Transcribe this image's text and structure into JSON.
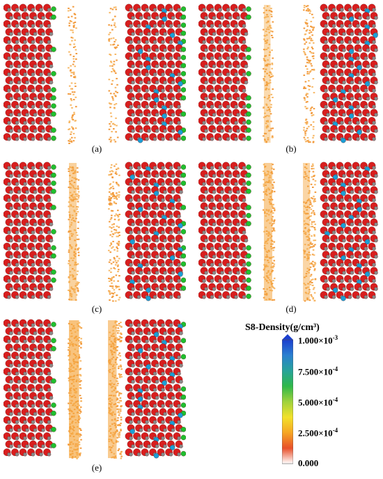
{
  "panels": [
    {
      "label": "(a)",
      "left_wall_atoms": "red-green-gray",
      "right_wall_atoms": "red-blue-green-gray",
      "s8_fill": 0.15
    },
    {
      "label": "(b)",
      "left_wall_atoms": "red-green-gray",
      "right_wall_atoms": "red-blue-gray",
      "s8_fill": 0.35
    },
    {
      "label": "(c)",
      "left_wall_atoms": "red-green-gray",
      "right_wall_atoms": "red-blue-green-gray",
      "s8_fill": 0.5
    },
    {
      "label": "(d)",
      "left_wall_atoms": "red-green-gray",
      "right_wall_atoms": "red-blue-gray",
      "s8_fill": 0.6
    },
    {
      "label": "(e)",
      "left_wall_atoms": "red-green-gray",
      "right_wall_atoms": "red-blue-green-gray",
      "s8_fill": 0.85
    }
  ],
  "legend": {
    "title": "S8-Density(g/cm³)",
    "ticks": [
      {
        "mantissa": "1.000×10",
        "exp": "-3"
      },
      {
        "mantissa": "7.500×10",
        "exp": "-4"
      },
      {
        "mantissa": "5.000×10",
        "exp": "-4"
      },
      {
        "mantissa": "2.500×10",
        "exp": "-4"
      },
      {
        "mantissa": "0.000",
        "exp": ""
      }
    ],
    "colors": [
      "#ffffff",
      "#e8502a",
      "#f6a623",
      "#f2e12a",
      "#9fd23c",
      "#2fb84a",
      "#27a39a",
      "#2a7fd0",
      "#1b3fcf"
    ]
  }
}
